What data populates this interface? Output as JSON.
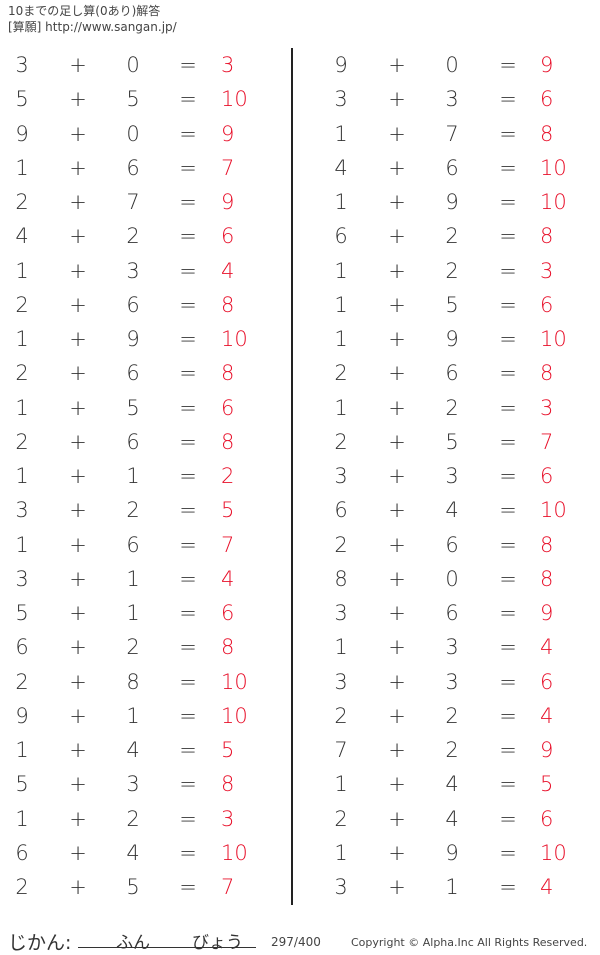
{
  "header": {
    "title": "10までの足し算(0あり)解答",
    "site": "[算願] http://www.sangan.jp/"
  },
  "colors": {
    "answer": "#e8102a",
    "text": "#333333"
  },
  "problems": {
    "left": [
      [
        3,
        0,
        3
      ],
      [
        5,
        5,
        10
      ],
      [
        9,
        0,
        9
      ],
      [
        1,
        6,
        7
      ],
      [
        2,
        7,
        9
      ],
      [
        4,
        2,
        6
      ],
      [
        1,
        3,
        4
      ],
      [
        2,
        6,
        8
      ],
      [
        1,
        9,
        10
      ],
      [
        2,
        6,
        8
      ],
      [
        1,
        5,
        6
      ],
      [
        2,
        6,
        8
      ],
      [
        1,
        1,
        2
      ],
      [
        3,
        2,
        5
      ],
      [
        1,
        6,
        7
      ],
      [
        3,
        1,
        4
      ],
      [
        5,
        1,
        6
      ],
      [
        6,
        2,
        8
      ],
      [
        2,
        8,
        10
      ],
      [
        9,
        1,
        10
      ],
      [
        1,
        4,
        5
      ],
      [
        5,
        3,
        8
      ],
      [
        1,
        2,
        3
      ],
      [
        6,
        4,
        10
      ],
      [
        2,
        5,
        7
      ]
    ],
    "right": [
      [
        9,
        0,
        9
      ],
      [
        3,
        3,
        6
      ],
      [
        1,
        7,
        8
      ],
      [
        4,
        6,
        10
      ],
      [
        1,
        9,
        10
      ],
      [
        6,
        2,
        8
      ],
      [
        1,
        2,
        3
      ],
      [
        1,
        5,
        6
      ],
      [
        1,
        9,
        10
      ],
      [
        2,
        6,
        8
      ],
      [
        1,
        2,
        3
      ],
      [
        2,
        5,
        7
      ],
      [
        3,
        3,
        6
      ],
      [
        6,
        4,
        10
      ],
      [
        2,
        6,
        8
      ],
      [
        8,
        0,
        8
      ],
      [
        3,
        6,
        9
      ],
      [
        1,
        3,
        4
      ],
      [
        3,
        3,
        6
      ],
      [
        2,
        2,
        4
      ],
      [
        7,
        2,
        9
      ],
      [
        1,
        4,
        5
      ],
      [
        2,
        4,
        6
      ],
      [
        1,
        9,
        10
      ],
      [
        3,
        1,
        4
      ]
    ]
  },
  "symbols": {
    "plus": "+",
    "equals": "="
  },
  "footer": {
    "time_label": "じかん:",
    "minutes": "ふん",
    "seconds": "びょう",
    "page": "297/400",
    "copyright": "Copyright ©  Alpha.Inc All Rights Reserved."
  }
}
